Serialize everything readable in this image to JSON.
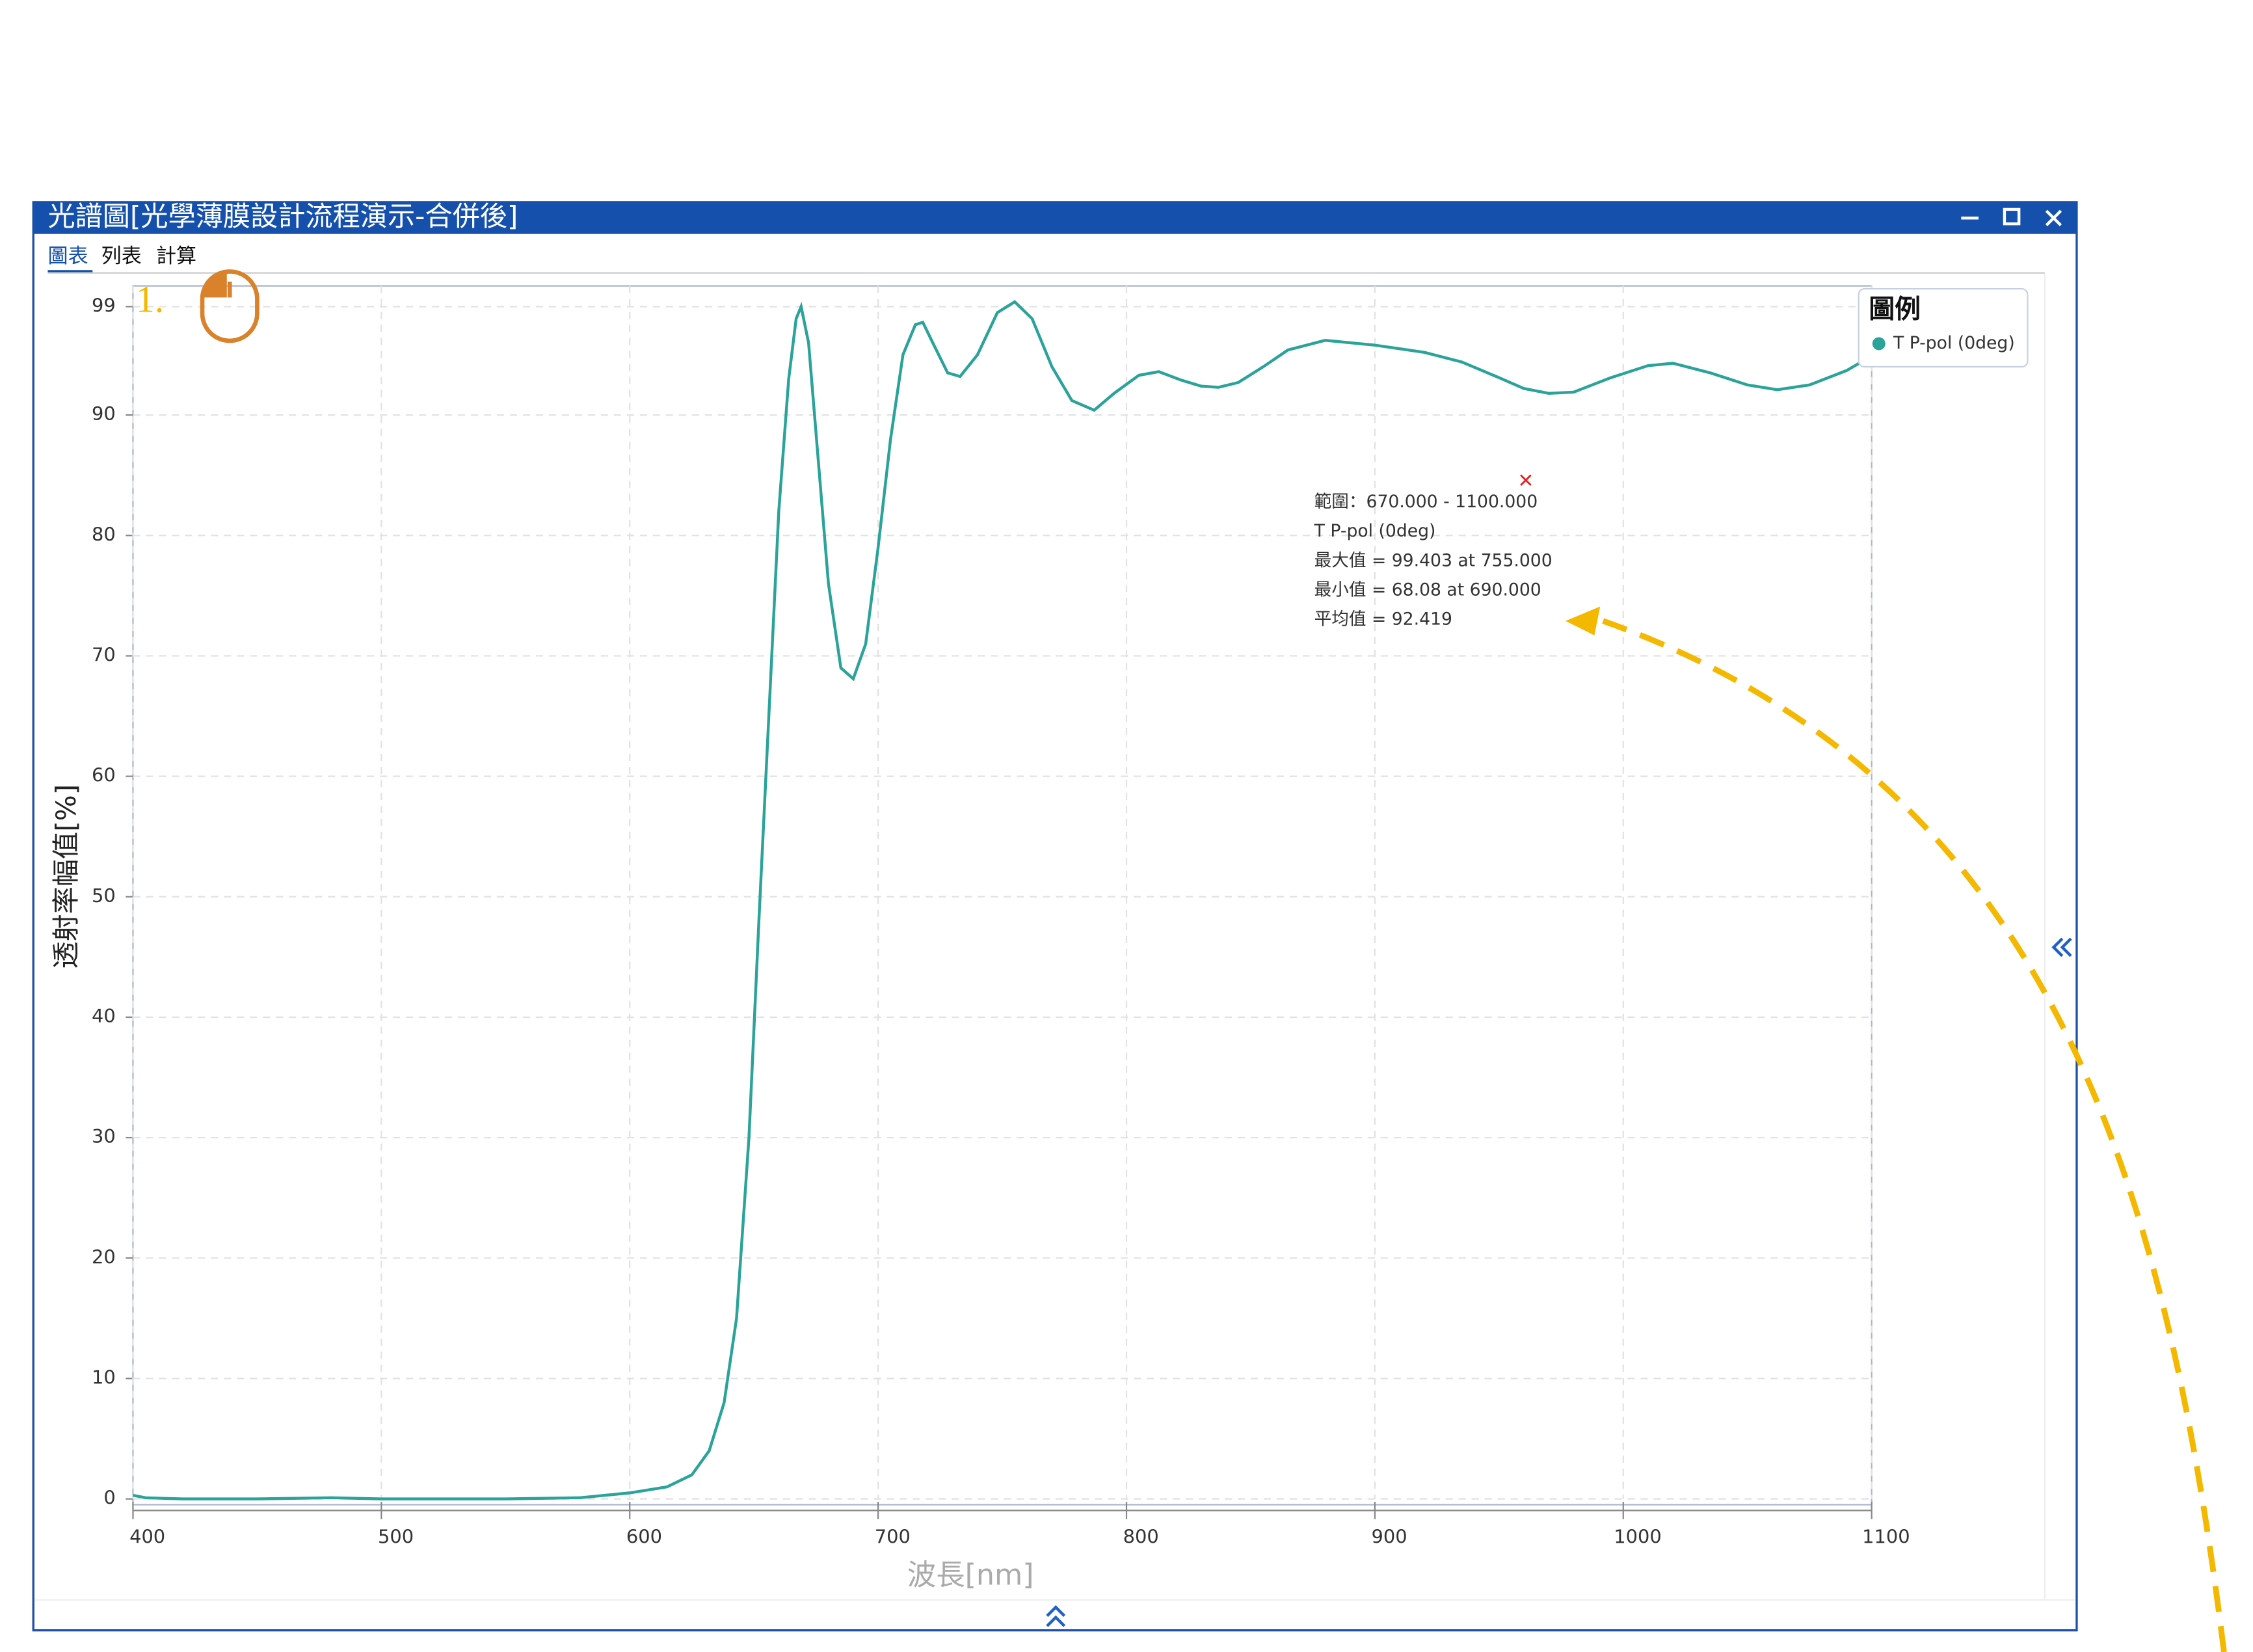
{
  "window": {
    "title": "光譜圖[光學薄膜設計流程演示-合併後]",
    "tabs": [
      "圖表",
      "列表",
      "計算"
    ]
  },
  "step_label": "1.",
  "legend_title": "圖例",
  "annotation": {
    "lines": [
      "範圍：670.000 - 1100.000",
      "T P-pol (0deg)",
      "最大值 = 99.403 at 755.000",
      "最小值 = 68.08 at 690.000",
      "平均值 = 92.419"
    ]
  },
  "chart_data": {
    "type": "line",
    "x_label": "波長[nm]",
    "y_label": "透射率幅值[%]",
    "x": [
      400,
      405,
      420,
      450,
      480,
      500,
      550,
      580,
      600,
      615,
      625,
      632,
      638,
      643,
      648,
      652,
      656,
      660,
      664,
      667,
      669,
      672,
      676,
      680,
      685,
      690,
      695,
      700,
      705,
      710,
      715,
      718,
      722,
      728,
      733,
      740,
      748,
      755,
      762,
      770,
      778,
      787,
      795,
      805,
      813,
      822,
      830,
      837,
      845,
      855,
      865,
      880,
      900,
      920,
      935,
      950,
      960,
      970,
      980,
      995,
      1010,
      1020,
      1035,
      1050,
      1062,
      1075,
      1090,
      1100
    ],
    "series": [
      {
        "name": "T P-pol (0deg)",
        "color": "#2ba39a",
        "values": [
          0.3,
          0.1,
          0,
          0,
          0.1,
          0,
          0,
          0.1,
          0.5,
          1,
          2,
          4,
          8,
          15,
          30,
          48,
          65,
          82,
          93,
          98,
          99,
          96,
          86,
          76,
          69,
          68.1,
          71,
          79,
          88,
          95,
          97.5,
          97.7,
          96,
          93.5,
          93.2,
          95,
          98.5,
          99.4,
          98,
          94,
          91.2,
          90.4,
          91.8,
          93.3,
          93.6,
          92.9,
          92.4,
          92.3,
          92.7,
          94,
          95.4,
          96.2,
          95.8,
          95.2,
          94.4,
          93.1,
          92.2,
          91.8,
          91.9,
          93.1,
          94.1,
          94.3,
          93.5,
          92.5,
          92.1,
          92.5,
          93.7,
          94.9
        ]
      }
    ],
    "xlim": [
      400,
      1100
    ],
    "xticks": [
      400,
      500,
      600,
      700,
      800,
      900,
      1000,
      1100
    ],
    "ylim": [
      0,
      100
    ],
    "yticks": [
      0,
      10,
      20,
      30,
      40,
      50,
      60,
      70,
      80,
      90,
      99
    ],
    "grid": true
  }
}
